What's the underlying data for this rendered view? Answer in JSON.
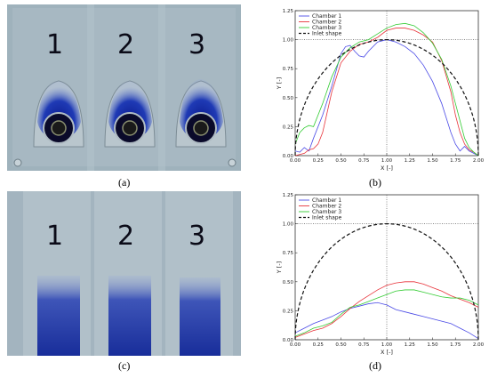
{
  "panels": {
    "a": {
      "caption": "(a)",
      "numbers": [
        "1",
        "2",
        "3"
      ]
    },
    "b": {
      "caption": "(b)"
    },
    "c": {
      "caption": "(c)",
      "numbers": [
        "1",
        "2",
        "3"
      ]
    },
    "d": {
      "caption": "(d)"
    }
  },
  "colors": {
    "chamber1": "#4a4ae6",
    "chamber2": "#e8333a",
    "chamber3": "#33cc33",
    "inlet": "#111111"
  },
  "chart_data": [
    {
      "type": "line",
      "panel": "b",
      "xlabel": "X [-]",
      "ylabel": "Y [-]",
      "xlim": [
        0,
        2
      ],
      "ylim": [
        0,
        1.25
      ],
      "xticks": [
        "0.00",
        "0.25",
        "0.50",
        "0.75",
        "1.00",
        "1.25",
        "1.50",
        "1.75",
        "2.00"
      ],
      "yticks": [
        "0.00",
        "0.25",
        "0.50",
        "0.75",
        "1.00",
        "1.25"
      ],
      "legend": "top-left",
      "series": [
        {
          "name": "Chamber 1",
          "color": "#4a4ae6",
          "x": [
            0.0,
            0.05,
            0.1,
            0.15,
            0.2,
            0.3,
            0.4,
            0.5,
            0.55,
            0.6,
            0.65,
            0.7,
            0.75,
            0.8,
            0.9,
            1.0,
            1.1,
            1.2,
            1.3,
            1.4,
            1.5,
            1.6,
            1.7,
            1.75,
            1.8,
            1.85,
            1.9,
            1.95,
            2.0
          ],
          "y": [
            0.04,
            0.03,
            0.07,
            0.04,
            0.15,
            0.35,
            0.6,
            0.88,
            0.94,
            0.95,
            0.9,
            0.86,
            0.85,
            0.9,
            0.98,
            1.0,
            0.98,
            0.94,
            0.88,
            0.78,
            0.64,
            0.45,
            0.2,
            0.1,
            0.04,
            0.08,
            0.04,
            0.02,
            0.0
          ]
        },
        {
          "name": "Chamber 2",
          "color": "#e8333a",
          "x": [
            0.0,
            0.1,
            0.15,
            0.2,
            0.25,
            0.3,
            0.4,
            0.5,
            0.6,
            0.7,
            0.8,
            0.9,
            1.0,
            1.1,
            1.2,
            1.3,
            1.4,
            1.5,
            1.6,
            1.7,
            1.75,
            1.8,
            1.85,
            1.9,
            1.95,
            2.0
          ],
          "y": [
            0.0,
            0.02,
            0.05,
            0.06,
            0.1,
            0.2,
            0.55,
            0.8,
            0.9,
            0.96,
            0.98,
            1.02,
            1.08,
            1.1,
            1.1,
            1.08,
            1.04,
            0.98,
            0.82,
            0.55,
            0.35,
            0.2,
            0.1,
            0.05,
            0.03,
            0.0
          ]
        },
        {
          "name": "Chamber 3",
          "color": "#33cc33",
          "x": [
            0.0,
            0.05,
            0.1,
            0.15,
            0.2,
            0.3,
            0.4,
            0.5,
            0.6,
            0.7,
            0.8,
            0.9,
            1.0,
            1.1,
            1.2,
            1.3,
            1.4,
            1.5,
            1.6,
            1.7,
            1.75,
            1.8,
            1.85,
            1.9,
            1.95,
            2.0
          ],
          "y": [
            0.1,
            0.2,
            0.24,
            0.26,
            0.25,
            0.45,
            0.68,
            0.85,
            0.93,
            0.98,
            1.0,
            1.05,
            1.1,
            1.13,
            1.14,
            1.12,
            1.06,
            0.97,
            0.83,
            0.6,
            0.45,
            0.3,
            0.15,
            0.07,
            0.03,
            0.0
          ]
        },
        {
          "name": "Inlet shape",
          "color": "#111111",
          "dashed": true,
          "function": "semicircle",
          "center": [
            1,
            0
          ],
          "radius": 1
        }
      ],
      "reference_lines": {
        "x": 1.0,
        "y": 1.0
      }
    },
    {
      "type": "line",
      "panel": "d",
      "xlabel": "X [-]",
      "ylabel": "Y [-]",
      "xlim": [
        0,
        2
      ],
      "ylim": [
        0,
        1.25
      ],
      "xticks": [
        "0.00",
        "0.25",
        "0.50",
        "0.75",
        "1.00",
        "1.25",
        "1.50",
        "1.75",
        "2.00"
      ],
      "yticks": [
        "0.00",
        "0.25",
        "0.50",
        "0.75",
        "1.00",
        "1.25"
      ],
      "legend": "top-left",
      "series": [
        {
          "name": "Chamber 1",
          "color": "#4a4ae6",
          "x": [
            0.0,
            0.1,
            0.2,
            0.3,
            0.4,
            0.5,
            0.6,
            0.7,
            0.8,
            0.9,
            1.0,
            1.1,
            1.2,
            1.3,
            1.4,
            1.5,
            1.6,
            1.7,
            1.8,
            1.9,
            2.0
          ],
          "y": [
            0.06,
            0.1,
            0.14,
            0.17,
            0.2,
            0.24,
            0.27,
            0.29,
            0.31,
            0.32,
            0.3,
            0.26,
            0.24,
            0.22,
            0.2,
            0.18,
            0.16,
            0.14,
            0.1,
            0.06,
            0.01
          ]
        },
        {
          "name": "Chamber 2",
          "color": "#e8333a",
          "x": [
            0.0,
            0.1,
            0.2,
            0.3,
            0.4,
            0.5,
            0.6,
            0.7,
            0.8,
            0.9,
            1.0,
            1.1,
            1.2,
            1.3,
            1.4,
            1.5,
            1.6,
            1.7,
            1.8,
            1.9,
            2.0
          ],
          "y": [
            0.02,
            0.05,
            0.08,
            0.1,
            0.14,
            0.2,
            0.27,
            0.33,
            0.38,
            0.43,
            0.47,
            0.49,
            0.5,
            0.5,
            0.48,
            0.45,
            0.42,
            0.38,
            0.35,
            0.32,
            0.28
          ]
        },
        {
          "name": "Chamber 3",
          "color": "#33cc33",
          "x": [
            0.0,
            0.1,
            0.2,
            0.3,
            0.4,
            0.5,
            0.6,
            0.7,
            0.8,
            0.9,
            1.0,
            1.1,
            1.2,
            1.3,
            1.4,
            1.5,
            1.6,
            1.7,
            1.8,
            1.9,
            2.0
          ],
          "y": [
            0.03,
            0.06,
            0.1,
            0.12,
            0.15,
            0.22,
            0.28,
            0.3,
            0.33,
            0.36,
            0.39,
            0.42,
            0.43,
            0.43,
            0.41,
            0.39,
            0.37,
            0.36,
            0.36,
            0.34,
            0.3
          ]
        },
        {
          "name": "Inlet shape",
          "color": "#111111",
          "dashed": true,
          "function": "semicircle",
          "center": [
            1,
            0
          ],
          "radius": 1
        }
      ],
      "reference_lines": {
        "x": 1.0,
        "y": 1.0
      }
    }
  ]
}
